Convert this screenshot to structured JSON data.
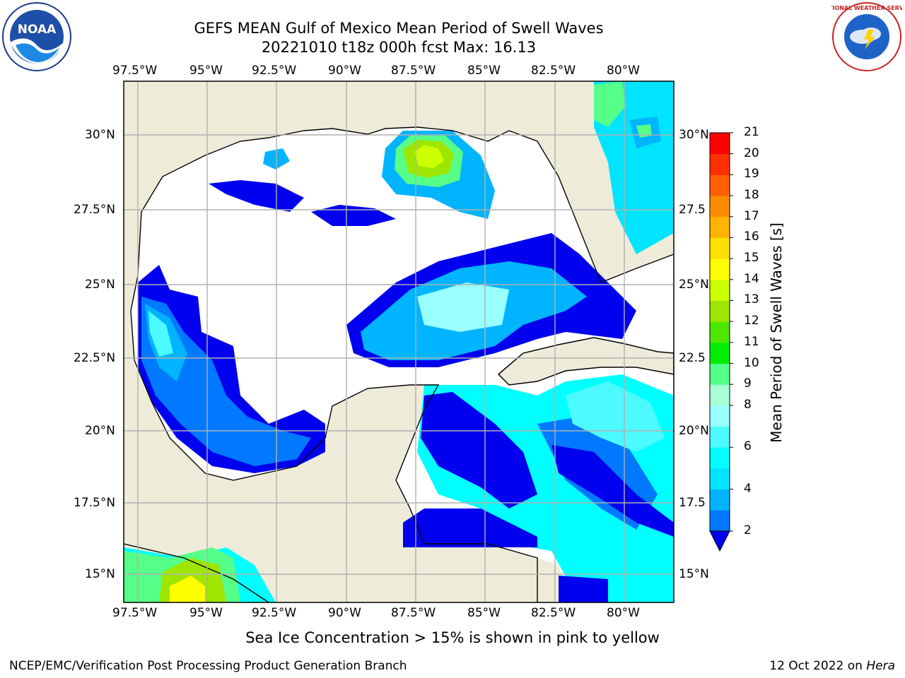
{
  "title": {
    "line1": "GEFS MEAN Gulf of Mexico Mean Period of Swell Waves",
    "line2": "20221010 t18z 000h fcst   Max: 16.13"
  },
  "axes": {
    "lon_labels": [
      "97.5°W",
      "95°W",
      "92.5°W",
      "90°W",
      "87.5°W",
      "85°W",
      "82.5°W",
      "80°W"
    ],
    "lat_labels_left": [
      "30°N",
      "27.5°N",
      "25°N",
      "22.5°N",
      "20°N",
      "17.5°N",
      "15°N"
    ],
    "lat_labels_right": [
      "30°N",
      "27.5",
      "25°N",
      "22.5",
      "20°N",
      "17.5",
      "15°N"
    ]
  },
  "colorbar": {
    "title": "Mean Period of Swell Waves [s]",
    "levels": [
      2,
      3,
      4,
      5,
      6,
      7,
      8,
      9,
      10,
      11,
      12,
      13,
      14,
      15,
      16,
      17,
      18,
      19,
      20,
      21
    ],
    "tick_labels": [
      "21",
      "20",
      "19",
      "18",
      "17",
      "16",
      "15",
      "14",
      "13",
      "12",
      "11",
      "10",
      "9",
      "8",
      "6",
      "4",
      "2"
    ],
    "colors": [
      "#0000ee",
      "#0078ff",
      "#00b4ff",
      "#00e4ff",
      "#00ffff",
      "#4dfaff",
      "#99ffff",
      "#a8ffd8",
      "#55ff88",
      "#00ee00",
      "#4ce600",
      "#9ee600",
      "#ccff00",
      "#ffff00",
      "#ffe000",
      "#ffb400",
      "#ff8c00",
      "#ff6000",
      "#ff3000",
      "#ff0000"
    ]
  },
  "map": {
    "land_color": "#eeecd9",
    "water_color": "#ffffff",
    "grid_color": "#b0b0b0"
  },
  "note": "Sea Ice Concentration > 15% is shown in pink to yellow",
  "footer": {
    "left": "NCEP/EMC/Verification Post Processing Product Generation Branch",
    "right_prefix": "12 Oct 2022 on ",
    "right_host": "Hera"
  },
  "logos": {
    "left": "NOAA",
    "right": "NATIONAL WEATHER SERVICE"
  }
}
